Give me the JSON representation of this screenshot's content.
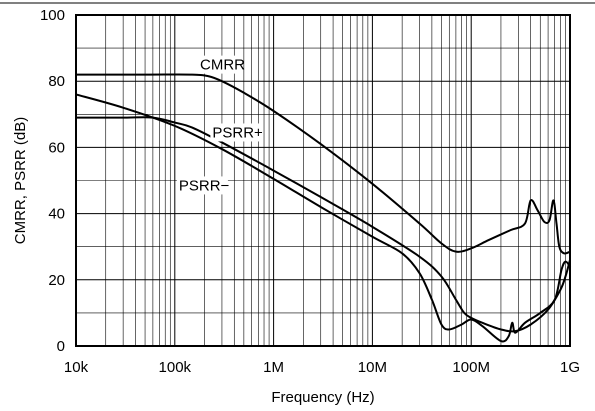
{
  "chart_data": {
    "type": "line",
    "xlabel": "Frequency (Hz)",
    "ylabel": "CMRR, PSRR (dB)",
    "x_scale": "log",
    "xlim": [
      "10k",
      "1G"
    ],
    "ylim": [
      0,
      100
    ],
    "grid": true,
    "x_ticks": [
      {
        "label": "10k",
        "value": 10000
      },
      {
        "label": "100k",
        "value": 100000
      },
      {
        "label": "1M",
        "value": 1000000
      },
      {
        "label": "10M",
        "value": 10000000
      },
      {
        "label": "100M",
        "value": 100000000
      },
      {
        "label": "1G",
        "value": 1000000000
      }
    ],
    "y_ticks": [
      {
        "label": "0",
        "value": 0
      },
      {
        "label": "20",
        "value": 20
      },
      {
        "label": "40",
        "value": 40
      },
      {
        "label": "60",
        "value": 60
      },
      {
        "label": "80",
        "value": 80
      },
      {
        "label": "100",
        "value": 100
      }
    ],
    "series": [
      {
        "name": "CMRR",
        "color": "#000000",
        "points": [
          [
            10000,
            82
          ],
          [
            50000,
            82
          ],
          [
            150000,
            82
          ],
          [
            220000,
            81.5
          ],
          [
            300000,
            80
          ],
          [
            500000,
            76.5
          ],
          [
            1000000,
            71
          ],
          [
            3000000,
            61
          ],
          [
            10000000,
            49
          ],
          [
            30000000,
            37
          ],
          [
            50000000,
            31
          ],
          [
            70000000,
            28.5
          ],
          [
            100000000,
            29.5
          ],
          [
            150000000,
            32
          ],
          [
            250000000,
            35
          ],
          [
            350000000,
            37
          ],
          [
            400000000,
            44
          ],
          [
            470000000,
            41
          ],
          [
            550000000,
            37.5
          ],
          [
            620000000,
            38
          ],
          [
            680000000,
            44
          ],
          [
            730000000,
            37
          ],
          [
            780000000,
            30
          ],
          [
            870000000,
            28
          ],
          [
            1000000000,
            28.5
          ]
        ]
      },
      {
        "name": "PSRR+",
        "color": "#000000",
        "points": [
          [
            10000,
            69
          ],
          [
            30000,
            69
          ],
          [
            60000,
            69
          ],
          [
            100000,
            67.5
          ],
          [
            150000,
            66
          ],
          [
            300000,
            61.5
          ],
          [
            1000000,
            53
          ],
          [
            3000000,
            45
          ],
          [
            10000000,
            36
          ],
          [
            30000000,
            27
          ],
          [
            50000000,
            21
          ],
          [
            70000000,
            14
          ],
          [
            85000000,
            10
          ],
          [
            100000000,
            8.5
          ],
          [
            130000000,
            7
          ],
          [
            200000000,
            5
          ],
          [
            280000000,
            4.5
          ],
          [
            400000000,
            6.5
          ],
          [
            600000000,
            11
          ],
          [
            800000000,
            17
          ],
          [
            900000000,
            21
          ],
          [
            1000000000,
            26
          ]
        ]
      },
      {
        "name": "PSRR−",
        "color": "#000000",
        "points": [
          [
            10000,
            76
          ],
          [
            30000,
            72
          ],
          [
            100000,
            66.5
          ],
          [
            300000,
            59.5
          ],
          [
            1000000,
            50.5
          ],
          [
            3000000,
            42
          ],
          [
            10000000,
            33
          ],
          [
            20000000,
            28
          ],
          [
            30000000,
            22
          ],
          [
            40000000,
            14
          ],
          [
            50000000,
            6.5
          ],
          [
            60000000,
            5
          ],
          [
            80000000,
            6.5
          ],
          [
            100000000,
            8
          ],
          [
            130000000,
            6
          ],
          [
            200000000,
            1.5
          ],
          [
            240000000,
            3
          ],
          [
            260000000,
            7
          ],
          [
            280000000,
            4
          ],
          [
            350000000,
            7
          ],
          [
            500000000,
            10
          ],
          [
            700000000,
            14
          ],
          [
            820000000,
            23
          ],
          [
            900000000,
            25.5
          ],
          [
            1000000000,
            24
          ]
        ]
      }
    ],
    "annotations": [
      {
        "text": "CMRR",
        "x": 180000,
        "y": 83.5
      },
      {
        "text": "PSRR+",
        "x": 240000,
        "y": 63
      },
      {
        "text": "PSRR−",
        "x": 110000,
        "y": 47
      }
    ]
  }
}
